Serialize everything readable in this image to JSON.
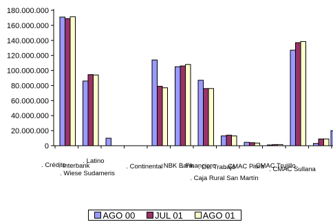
{
  "chart_data": {
    "type": "bar",
    "ylim": [
      0,
      180000000
    ],
    "y_ticks": [
      "0",
      "20.000.000",
      "40.000.000",
      "60.000.000",
      "80.000.000",
      "100.000.000",
      "120.000.000",
      "140.000.000",
      "160.000.000",
      "180.000.000"
    ],
    "categories": [
      ". Crédito",
      ". Interbank",
      ". Latino",
      ". Wiese Sudameris",
      ". Continental",
      ". NBK Bank",
      ". Financiero",
      ". Del Trabajo",
      ". Caja Rural San Martín",
      ". CMAC Piura",
      ". CMAC Trujillo",
      ". CMAC Sullana"
    ],
    "series": [
      {
        "name": "AGO 00",
        "color": "#9999ff",
        "values": [
          171000000,
          86000000,
          10000000,
          0,
          114000000,
          105000000,
          87000000,
          13000000,
          4500000,
          1000000,
          127000000,
          3000000
        ]
      },
      {
        "name": "JUL 01",
        "color": "#993366",
        "values": [
          169000000,
          94500000,
          0,
          0,
          79000000,
          106000000,
          76000000,
          14000000,
          4000000,
          1500000,
          137000000,
          9000000
        ]
      },
      {
        "name": "AGO 01",
        "color": "#ffffcc",
        "values": [
          171500000,
          94000000,
          0,
          0,
          77000000,
          108000000,
          76000000,
          13000000,
          3500000,
          1500000,
          138500000,
          9000000
        ]
      }
    ],
    "extra_partial_bars": {
      "values": [
        20000000,
        25000000,
        25000000
      ]
    },
    "legend_position": "bottom",
    "grid": false
  }
}
